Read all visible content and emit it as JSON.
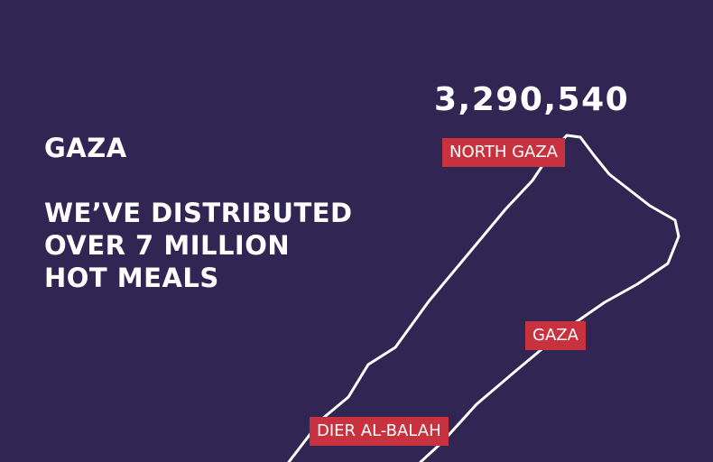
{
  "headline": {
    "region": "GAZA",
    "lines": [
      "WE’VE DISTRIBUTED",
      "OVER 7 MILLION",
      "HOT MEALS"
    ]
  },
  "stat": {
    "value": "3,290,540"
  },
  "labels": {
    "north_gaza": "NORTH GAZA",
    "gaza": "GAZA",
    "dier_al_balah": "DIER AL-BALAH"
  },
  "colors": {
    "background": "#312553",
    "label_bg": "#c8323f",
    "text": "#ffffff",
    "outline": "#ffffff"
  }
}
